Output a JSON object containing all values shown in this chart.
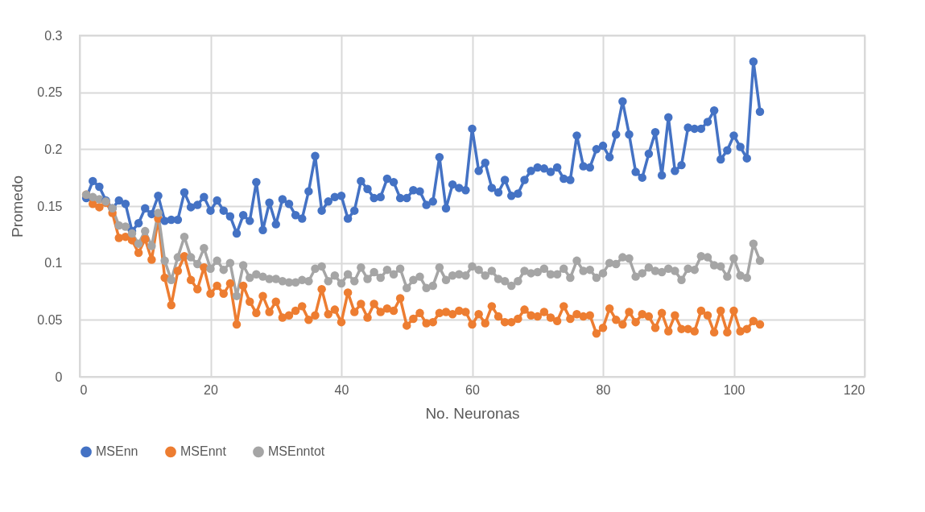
{
  "chart_data": {
    "type": "line",
    "xlabel": "No. Neuronas",
    "ylabel": "Promedo",
    "x": [
      1,
      2,
      3,
      4,
      5,
      6,
      7,
      8,
      9,
      10,
      11,
      12,
      13,
      14,
      15,
      16,
      17,
      18,
      19,
      20,
      21,
      22,
      23,
      24,
      25,
      26,
      27,
      28,
      29,
      30,
      31,
      32,
      33,
      34,
      35,
      36,
      37,
      38,
      39,
      40,
      41,
      42,
      43,
      44,
      45,
      46,
      47,
      48,
      49,
      50,
      51,
      52,
      53,
      54,
      55,
      56,
      57,
      58,
      59,
      60,
      61,
      62,
      63,
      64,
      65,
      66,
      67,
      68,
      69,
      70,
      71,
      72,
      73,
      74,
      75,
      76,
      77,
      78,
      79,
      80,
      81,
      82,
      83,
      84,
      85,
      86,
      87,
      88,
      89,
      90,
      91,
      92,
      93,
      94,
      95,
      96,
      97,
      98,
      99,
      100,
      101,
      102,
      103,
      104
    ],
    "series": [
      {
        "name": "MSEnn",
        "color": "#4472c4",
        "values": [
          0.157,
          0.172,
          0.167,
          0.155,
          0.148,
          0.155,
          0.152,
          0.128,
          0.135,
          0.148,
          0.143,
          0.159,
          0.137,
          0.138,
          0.138,
          0.162,
          0.149,
          0.151,
          0.158,
          0.146,
          0.155,
          0.146,
          0.141,
          0.126,
          0.142,
          0.137,
          0.171,
          0.129,
          0.153,
          0.134,
          0.156,
          0.152,
          0.142,
          0.139,
          0.163,
          0.194,
          0.146,
          0.154,
          0.158,
          0.159,
          0.139,
          0.146,
          0.172,
          0.165,
          0.157,
          0.158,
          0.174,
          0.171,
          0.157,
          0.157,
          0.164,
          0.163,
          0.151,
          0.154,
          0.193,
          0.148,
          0.169,
          0.166,
          0.164,
          0.218,
          0.181,
          0.188,
          0.166,
          0.162,
          0.173,
          0.159,
          0.161,
          0.173,
          0.181,
          0.184,
          0.183,
          0.18,
          0.184,
          0.174,
          0.173,
          0.212,
          0.185,
          0.184,
          0.2,
          0.203,
          0.193,
          0.213,
          0.242,
          0.213,
          0.18,
          0.175,
          0.196,
          0.215,
          0.177,
          0.228,
          0.181,
          0.186,
          0.219,
          0.218,
          0.218,
          0.224,
          0.234,
          0.191,
          0.199,
          0.212,
          0.202,
          0.192,
          0.277,
          0.233
        ]
      },
      {
        "name": "MSEnnt",
        "color": "#ed7d31",
        "values": [
          0.16,
          0.152,
          0.149,
          0.153,
          0.144,
          0.122,
          0.123,
          0.12,
          0.109,
          0.121,
          0.103,
          0.139,
          0.087,
          0.063,
          0.093,
          0.106,
          0.085,
          0.077,
          0.096,
          0.073,
          0.08,
          0.073,
          0.082,
          0.046,
          0.08,
          0.066,
          0.056,
          0.071,
          0.057,
          0.066,
          0.052,
          0.054,
          0.058,
          0.062,
          0.05,
          0.054,
          0.077,
          0.055,
          0.059,
          0.048,
          0.074,
          0.057,
          0.064,
          0.052,
          0.064,
          0.057,
          0.06,
          0.058,
          0.069,
          0.045,
          0.051,
          0.056,
          0.047,
          0.048,
          0.056,
          0.057,
          0.055,
          0.058,
          0.057,
          0.046,
          0.055,
          0.047,
          0.062,
          0.053,
          0.048,
          0.048,
          0.051,
          0.059,
          0.054,
          0.053,
          0.057,
          0.052,
          0.049,
          0.062,
          0.051,
          0.055,
          0.053,
          0.054,
          0.038,
          0.043,
          0.06,
          0.05,
          0.046,
          0.057,
          0.048,
          0.055,
          0.053,
          0.043,
          0.056,
          0.04,
          0.054,
          0.042,
          0.042,
          0.04,
          0.058,
          0.054,
          0.039,
          0.058,
          0.039,
          0.058,
          0.04,
          0.042,
          0.049,
          0.046
        ]
      },
      {
        "name": "MSEnntot",
        "color": "#a5a5a5",
        "values": [
          0.16,
          0.158,
          0.156,
          0.154,
          0.148,
          0.133,
          0.132,
          0.126,
          0.117,
          0.128,
          0.115,
          0.144,
          0.102,
          0.085,
          0.105,
          0.123,
          0.105,
          0.099,
          0.113,
          0.095,
          0.102,
          0.094,
          0.1,
          0.071,
          0.098,
          0.087,
          0.09,
          0.088,
          0.086,
          0.086,
          0.084,
          0.083,
          0.083,
          0.085,
          0.084,
          0.095,
          0.097,
          0.084,
          0.089,
          0.082,
          0.09,
          0.084,
          0.096,
          0.086,
          0.092,
          0.087,
          0.094,
          0.09,
          0.095,
          0.078,
          0.085,
          0.088,
          0.078,
          0.08,
          0.096,
          0.085,
          0.089,
          0.09,
          0.089,
          0.097,
          0.094,
          0.089,
          0.093,
          0.086,
          0.084,
          0.08,
          0.084,
          0.093,
          0.091,
          0.092,
          0.095,
          0.09,
          0.09,
          0.095,
          0.087,
          0.102,
          0.093,
          0.094,
          0.087,
          0.091,
          0.1,
          0.099,
          0.105,
          0.104,
          0.088,
          0.091,
          0.096,
          0.093,
          0.092,
          0.095,
          0.093,
          0.085,
          0.095,
          0.094,
          0.106,
          0.105,
          0.098,
          0.097,
          0.088,
          0.104,
          0.089,
          0.087,
          0.117,
          0.102
        ]
      }
    ],
    "xlim": [
      0,
      120
    ],
    "xticks": [
      0,
      20,
      40,
      60,
      80,
      100,
      120
    ],
    "ylim": [
      0,
      0.3
    ],
    "yticks": [
      0,
      0.05,
      0.1,
      0.15,
      0.2,
      0.25,
      0.3
    ],
    "grid": true,
    "legend": "bottom",
    "marker": "circle",
    "line_style": "solid"
  }
}
